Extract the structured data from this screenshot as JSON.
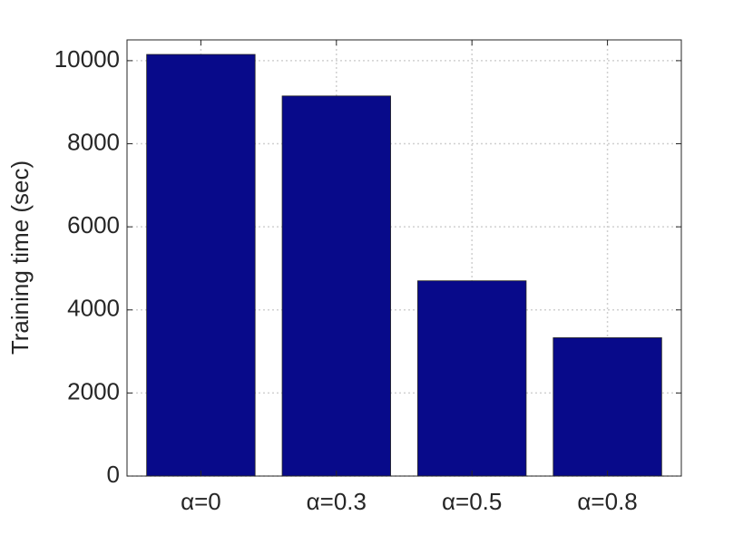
{
  "chart_data": {
    "type": "bar",
    "y_label": "Training time (sec)",
    "categories": [
      "α=0",
      "α=0.3",
      "α=0.5",
      "α=0.8"
    ],
    "values": [
      10150,
      9150,
      4700,
      3330
    ],
    "color": "#080a8a",
    "ylim": [
      0,
      10500
    ],
    "yticks": [
      0,
      2000,
      4000,
      6000,
      8000,
      10000
    ],
    "grid": true
  }
}
